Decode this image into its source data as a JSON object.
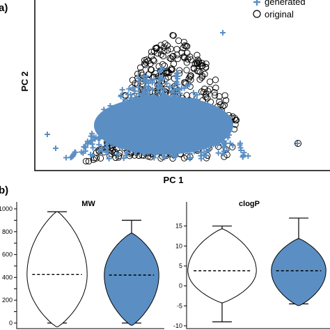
{
  "panel_a": {
    "label": "a)",
    "chart_data": {
      "type": "scatter",
      "title": "",
      "xlabel": "PC 1",
      "ylabel": "PC 2",
      "legend_position": "top-right",
      "series": [
        {
          "name": "generated",
          "marker": "plus",
          "color": "#5b8fc4"
        },
        {
          "name": "original",
          "marker": "circle",
          "color": "#000000"
        }
      ]
    }
  },
  "panel_b": {
    "label": "b)",
    "charts": [
      {
        "type": "violin",
        "title": "MW",
        "ylim": [
          0,
          1000
        ],
        "yticks": [
          0,
          100,
          200,
          300,
          400,
          500,
          600,
          700,
          800,
          900,
          1000
        ],
        "ytick_labels": [
          "0",
          "",
          "200",
          "",
          "400",
          "",
          "600",
          "",
          "800",
          "",
          "1000"
        ],
        "series": [
          {
            "fill": "#ffffff",
            "min": 0,
            "max": 975,
            "median": 425
          },
          {
            "fill": "#5b8fc4",
            "min": 0,
            "max": 900,
            "median": 420
          }
        ]
      },
      {
        "type": "violin",
        "title": "clogP",
        "ylim": [
          -10,
          20
        ],
        "yticks": [
          -10,
          -5,
          0,
          5,
          10,
          15
        ],
        "ytick_labels": [
          "-10",
          "-5",
          "0",
          "5",
          "10",
          "15"
        ],
        "series": [
          {
            "fill": "#ffffff",
            "min": -9,
            "max": 15,
            "median": 3.8
          },
          {
            "fill": "#5b8fc4",
            "min": -4.5,
            "max": 17,
            "median": 3.8
          }
        ]
      }
    ]
  }
}
